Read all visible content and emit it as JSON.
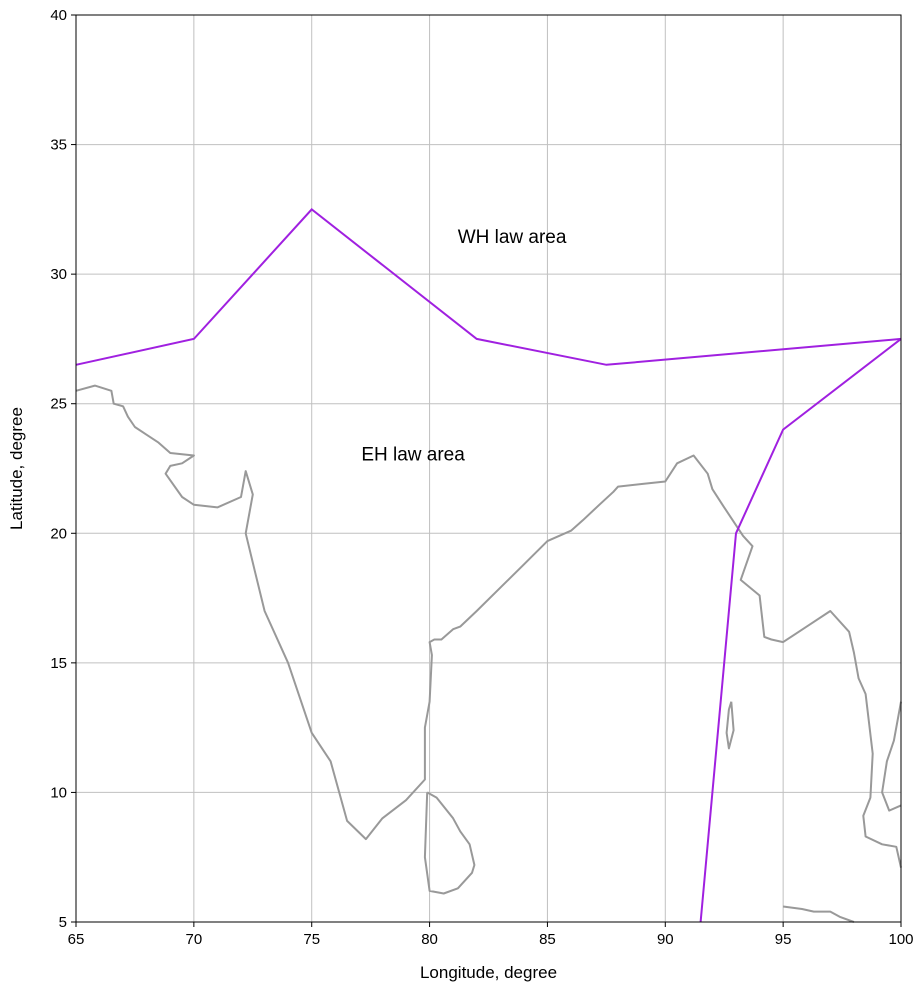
{
  "chart_data": {
    "type": "line",
    "xlabel": "Longitude, degree",
    "ylabel": "Latitude, degree",
    "xlim": [
      65,
      100
    ],
    "ylim": [
      5,
      40
    ],
    "x_ticks": [
      65,
      70,
      75,
      80,
      85,
      90,
      95,
      100
    ],
    "y_ticks": [
      5,
      10,
      15,
      20,
      25,
      30,
      35,
      40
    ],
    "grid": true,
    "annotations": [
      {
        "text": "WH law area",
        "x": 83.5,
        "y": 31.2
      },
      {
        "text": "EH law area",
        "x": 79.3,
        "y": 22.8
      }
    ],
    "colors": {
      "boundary": "#a020e0",
      "coastline": "#999999",
      "grid": "#c0c0c0",
      "frame": "#000000"
    },
    "boundary_series": [
      {
        "x": [
          65,
          70,
          75,
          82,
          87.5,
          100
        ],
        "y": [
          26.5,
          27.5,
          32.5,
          27.5,
          26.5,
          27.5
        ]
      },
      {
        "x": [
          100,
          95,
          93,
          91.5
        ],
        "y": [
          27.5,
          24,
          20,
          5
        ]
      }
    ],
    "coastline_series": [
      {
        "x": [
          65,
          65.8,
          66.5,
          66.6,
          67,
          67.2,
          67.5,
          68,
          68.5,
          69,
          70,
          69.5,
          69,
          68.8,
          69.5,
          70,
          71,
          72,
          72.2,
          72.5,
          72.2,
          72.6,
          73,
          74,
          75,
          75.8,
          76.5,
          77.3,
          78,
          79,
          79.8,
          79.8,
          80.0,
          80.1,
          80.0,
          80.2,
          80.5,
          81,
          81.3,
          82,
          83,
          84,
          85,
          86,
          86.5,
          87.2,
          87.8,
          88,
          89,
          90,
          90.5,
          91.2,
          91.8,
          92,
          92.5,
          93.3,
          93.7,
          93.2,
          94,
          94.2,
          94.5,
          95,
          96,
          97,
          97.8,
          98,
          98.2,
          98.5,
          98.8,
          98.7,
          98.4,
          98.5,
          99.2,
          99.8,
          100
        ],
        "y": [
          25.5,
          25.7,
          25.5,
          25.0,
          24.9,
          24.5,
          24.1,
          23.8,
          23.5,
          23.1,
          23.0,
          22.7,
          22.6,
          22.3,
          21.4,
          21.1,
          21.0,
          21.4,
          22.4,
          21.5,
          20.0,
          18.5,
          17.0,
          15.0,
          12.3,
          11.2,
          8.9,
          8.2,
          9.0,
          9.7,
          10.5,
          12.5,
          13.5,
          15.3,
          15.8,
          15.9,
          15.9,
          16.3,
          16.4,
          17.0,
          17.9,
          18.8,
          19.7,
          20.1,
          20.5,
          21.1,
          21.6,
          21.8,
          21.9,
          22.0,
          22.7,
          23.0,
          22.3,
          21.7,
          21.0,
          19.9,
          19.5,
          18.2,
          17.6,
          16.0,
          15.9,
          15.8,
          16.4,
          17.0,
          16.2,
          15.4,
          14.4,
          13.8,
          11.5,
          9.8,
          9.1,
          8.3,
          8.0,
          7.9,
          7.1
        ]
      },
      {
        "x": [
          79.9,
          80.3,
          81.0,
          81.3,
          81.7,
          81.9,
          81.8,
          81.2,
          80.6,
          80.0,
          79.8,
          79.9
        ],
        "y": [
          10.0,
          9.8,
          9.0,
          8.5,
          8.0,
          7.2,
          6.9,
          6.3,
          6.1,
          6.2,
          7.5,
          10.0
        ]
      },
      {
        "x": [
          92.8,
          92.9,
          92.7,
          92.6,
          92.7,
          92.8
        ],
        "y": [
          13.5,
          12.4,
          11.7,
          12.3,
          13.2,
          13.5
        ]
      },
      {
        "x": [
          95,
          95.8,
          96.3,
          97,
          97.4,
          98
        ],
        "y": [
          5.6,
          5.5,
          5.4,
          5.4,
          5.2,
          5.0
        ]
      },
      {
        "x": [
          100,
          99.7,
          99.4,
          99.2,
          99.5,
          100
        ],
        "y": [
          13.5,
          12.0,
          11.2,
          10.0,
          9.3,
          9.5
        ]
      }
    ]
  }
}
